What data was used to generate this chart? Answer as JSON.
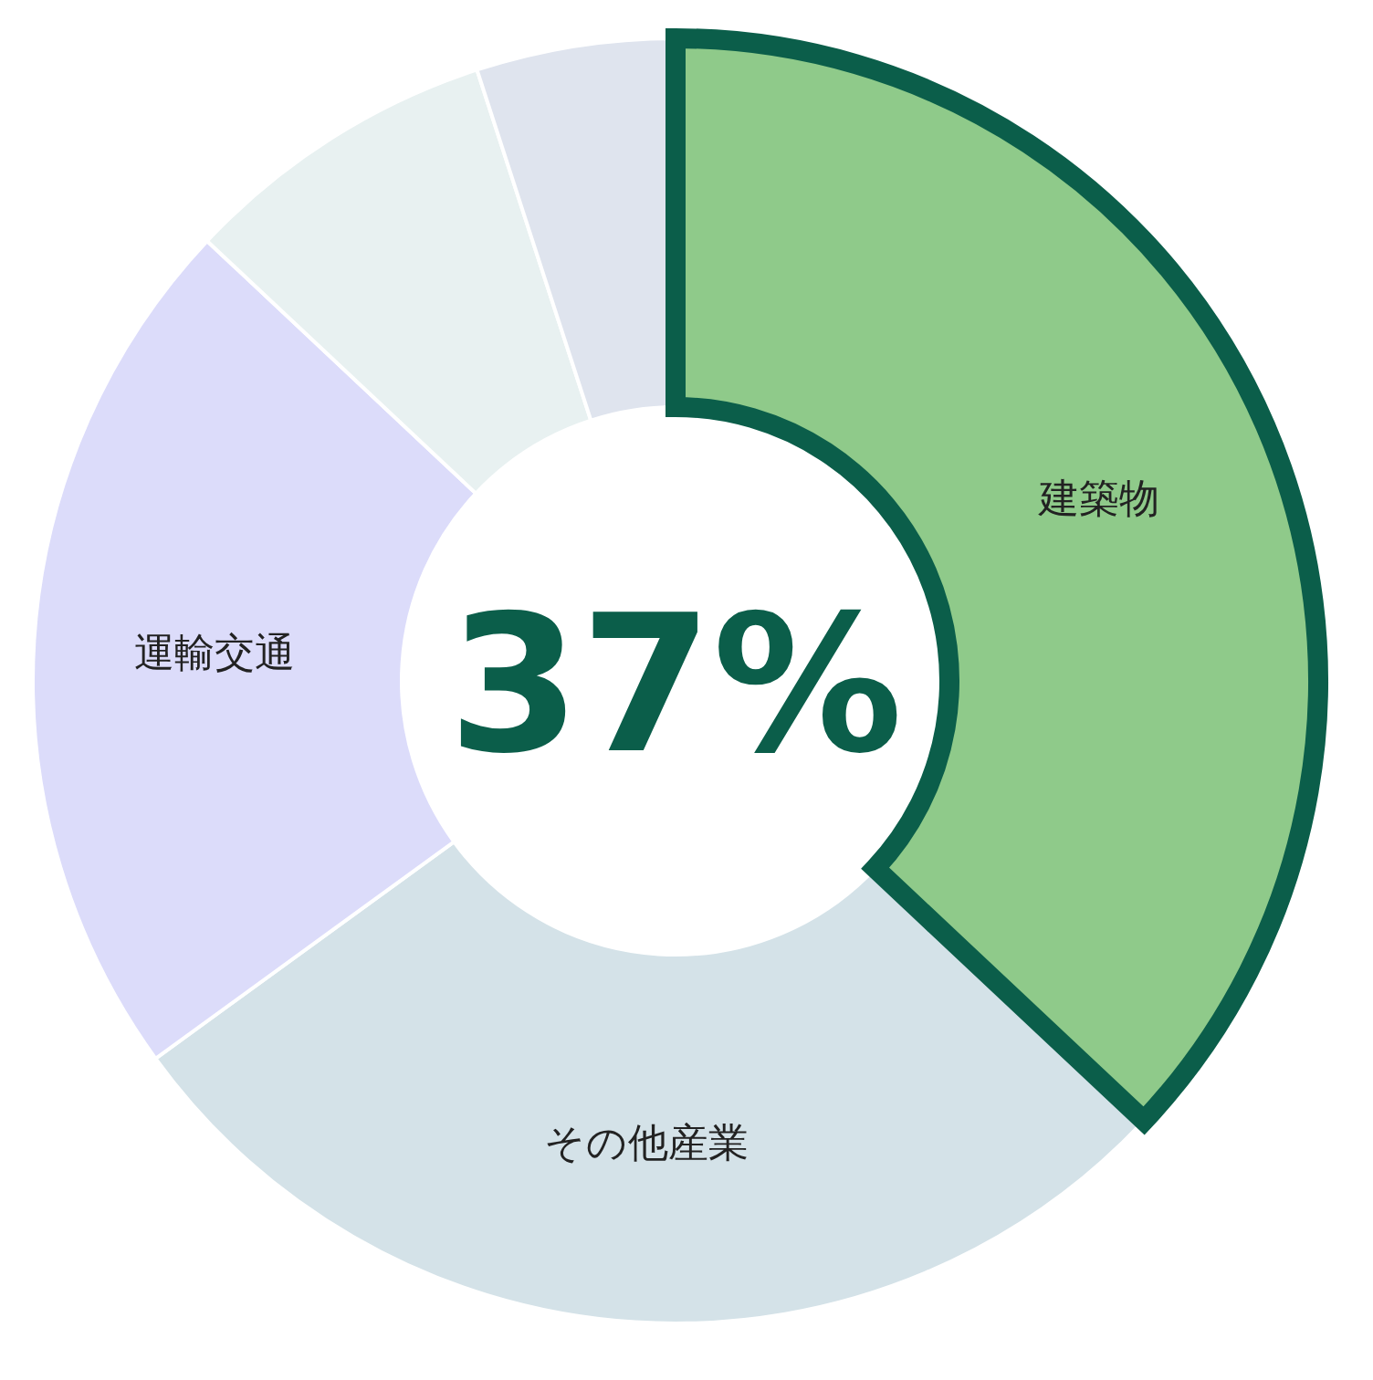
{
  "chart_data": {
    "type": "donut",
    "categories": [
      "建築物",
      "その他産業",
      "運輸交通",
      null,
      null
    ],
    "values": [
      37,
      28,
      22,
      8,
      5
    ],
    "colors": [
      "#8fca8a",
      "#d4e2e8",
      "#dcdcfa",
      "#e8f1f1",
      "#dfe4ee"
    ],
    "value_labels": [
      "37%",
      null,
      null,
      null,
      null
    ]
  }
}
